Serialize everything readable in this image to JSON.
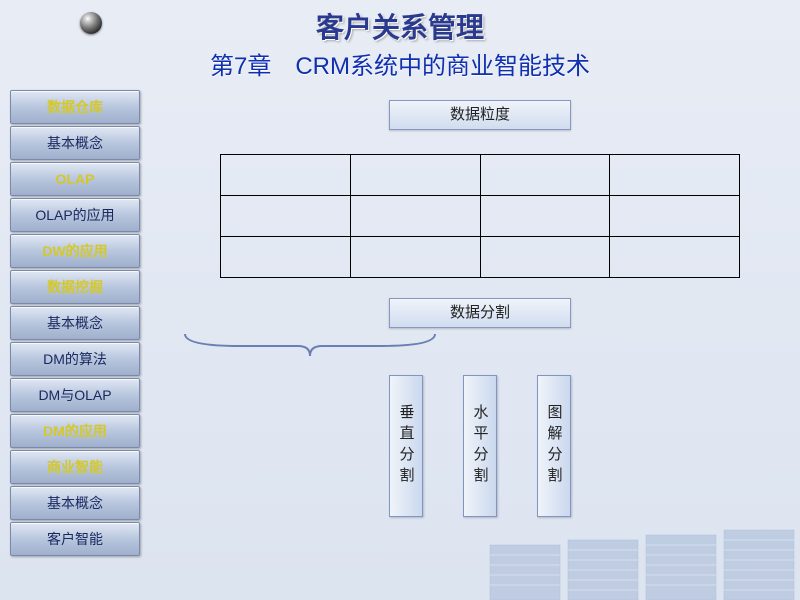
{
  "header": {
    "title": "客户关系管理",
    "subtitle": "第7章　CRM系统中的商业智能技术"
  },
  "sidebar": {
    "items": [
      {
        "label": "数据仓库",
        "style": "yellow"
      },
      {
        "label": "基本概念",
        "style": "dark"
      },
      {
        "label": "OLAP",
        "style": "yellow"
      },
      {
        "label": "OLAP的应用",
        "style": "dark"
      },
      {
        "label": "DW的应用",
        "style": "yellow"
      },
      {
        "label": "数据挖掘",
        "style": "yellow"
      },
      {
        "label": "基本概念",
        "style": "dark"
      },
      {
        "label": "DM的算法",
        "style": "dark"
      },
      {
        "label": "DM与OLAP",
        "style": "dark"
      },
      {
        "label": "DM的应用",
        "style": "yellow"
      },
      {
        "label": "商业智能",
        "style": "yellow"
      },
      {
        "label": "基本概念",
        "style": "dark"
      },
      {
        "label": "客户智能",
        "style": "dark"
      }
    ]
  },
  "content": {
    "box1_label": "数据粒度",
    "grid": {
      "rows": 3,
      "cols": 4
    },
    "box2_label": "数据分割",
    "splits": [
      "垂直分割",
      "水平分割",
      "图解分割"
    ]
  },
  "colors": {
    "title": "#2a3a8f",
    "subtitle": "#1030b0",
    "nav_yellow": "#d4c82a",
    "nav_dark": "#1a2a60",
    "box_border": "#8898c0",
    "building": "#a8bad8"
  }
}
